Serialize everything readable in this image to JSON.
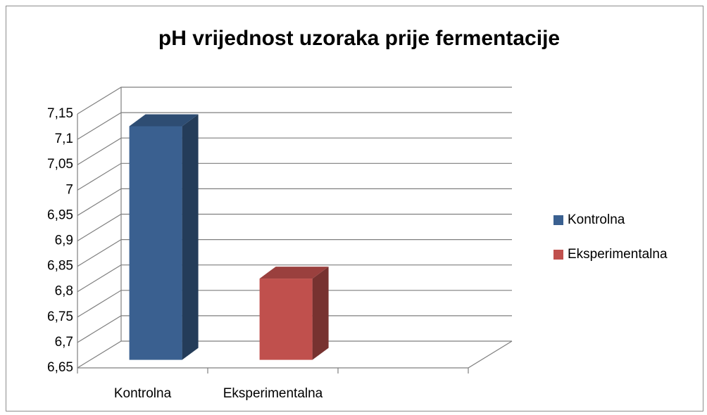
{
  "chart_data": {
    "type": "bar3d",
    "title": "pH vrijednost uzoraka prije fermentacije",
    "categories": [
      "Kontrolna",
      "Eksperimentalna",
      null
    ],
    "series": [
      {
        "name": "Kontrolna",
        "color": "#3a6090",
        "values": [
          7.11,
          null,
          null
        ]
      },
      {
        "name": "Eksperimentalna",
        "color": "#c0504d",
        "values": [
          null,
          6.81,
          null
        ]
      }
    ],
    "ylim": [
      6.65,
      7.15
    ],
    "yticks": [
      {
        "value": 6.65,
        "label": "6,65"
      },
      {
        "value": 6.7,
        "label": "6,7"
      },
      {
        "value": 6.75,
        "label": "6,75"
      },
      {
        "value": 6.8,
        "label": "6,8"
      },
      {
        "value": 6.85,
        "label": "6,85"
      },
      {
        "value": 6.9,
        "label": "6,9"
      },
      {
        "value": 6.95,
        "label": "6,95"
      },
      7,
      {
        "value": 7.05,
        "label": "7,05"
      },
      {
        "value": 7.1,
        "label": "7,1"
      },
      {
        "value": 7.15,
        "label": "7,15"
      }
    ],
    "grid": true,
    "legend": "right"
  }
}
